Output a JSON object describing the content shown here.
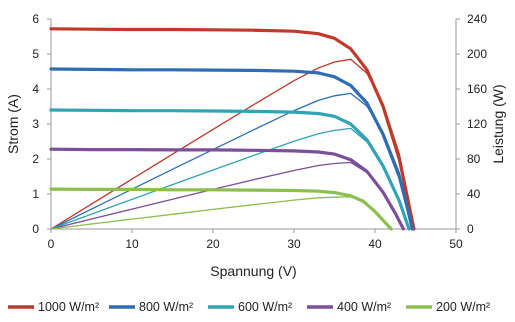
{
  "chart_data": {
    "type": "line",
    "title": "",
    "xlabel": "Spannung (V)",
    "ylabel": "Strom (A)",
    "y2label": "Leistung (W)",
    "xlim": [
      0,
      50
    ],
    "ylim": [
      0,
      6
    ],
    "y2lim": [
      0,
      240
    ],
    "x_ticks": [
      0,
      10,
      20,
      30,
      40,
      50
    ],
    "y_ticks": [
      0,
      1,
      2,
      3,
      4,
      5,
      6
    ],
    "y2_ticks": [
      0,
      40,
      80,
      120,
      160,
      200,
      240
    ],
    "grid": false,
    "legend_position": "bottom",
    "series": [
      {
        "name": "1000 W/m²",
        "color": "#c0392b",
        "current": {
          "x": [
            0,
            5,
            10,
            15,
            20,
            25,
            30,
            33,
            35,
            37,
            39,
            41,
            43,
            44,
            44.8
          ],
          "y": [
            5.72,
            5.71,
            5.7,
            5.7,
            5.69,
            5.68,
            5.65,
            5.58,
            5.45,
            5.15,
            4.55,
            3.5,
            2.0,
            0.9,
            0
          ]
        },
        "power": {
          "x": [
            0,
            5,
            10,
            15,
            20,
            25,
            30,
            33,
            35,
            37,
            39,
            41,
            43,
            44,
            44.8
          ],
          "y": [
            0,
            28.5,
            57,
            85.5,
            113.8,
            142,
            169.5,
            184,
            190.8,
            194,
            178,
            143,
            86,
            40,
            0
          ]
        }
      },
      {
        "name": "800 W/m²",
        "color": "#2e6db4",
        "current": {
          "x": [
            0,
            5,
            10,
            15,
            20,
            25,
            30,
            33,
            35,
            37,
            39,
            41,
            43,
            44,
            44.6
          ],
          "y": [
            4.57,
            4.56,
            4.55,
            4.55,
            4.54,
            4.53,
            4.51,
            4.46,
            4.35,
            4.1,
            3.6,
            2.7,
            1.5,
            0.6,
            0
          ]
        },
        "power": {
          "x": [
            0,
            5,
            10,
            15,
            20,
            25,
            30,
            33,
            35,
            37,
            39,
            41,
            43,
            44,
            44.6
          ],
          "y": [
            0,
            22.8,
            45.5,
            68.2,
            90.8,
            113.2,
            135.3,
            147,
            152.2,
            155,
            140.4,
            110.7,
            64.5,
            26.4,
            0
          ]
        }
      },
      {
        "name": "600 W/m²",
        "color": "#31a3b5",
        "current": {
          "x": [
            0,
            5,
            10,
            15,
            20,
            25,
            30,
            33,
            35,
            37,
            39,
            41,
            43,
            44.2
          ],
          "y": [
            3.4,
            3.39,
            3.38,
            3.38,
            3.37,
            3.36,
            3.34,
            3.3,
            3.22,
            3.0,
            2.55,
            1.8,
            0.8,
            0
          ]
        },
        "power": {
          "x": [
            0,
            5,
            10,
            15,
            20,
            25,
            30,
            33,
            35,
            37,
            39,
            41,
            43,
            44.2
          ],
          "y": [
            0,
            17,
            33.8,
            50.7,
            67.4,
            84,
            100.2,
            108.9,
            112.7,
            115,
            99.5,
            73.8,
            34.4,
            0
          ]
        }
      },
      {
        "name": "400 W/m²",
        "color": "#7b4f9a",
        "current": {
          "x": [
            0,
            5,
            10,
            15,
            20,
            25,
            30,
            33,
            35,
            37,
            39,
            41,
            42.5,
            43.5
          ],
          "y": [
            2.28,
            2.27,
            2.27,
            2.26,
            2.26,
            2.25,
            2.23,
            2.2,
            2.14,
            1.98,
            1.65,
            1.05,
            0.45,
            0
          ]
        },
        "power": {
          "x": [
            0,
            5,
            10,
            15,
            20,
            25,
            30,
            33,
            35,
            37,
            39,
            41,
            42.5,
            43.5
          ],
          "y": [
            0,
            11.4,
            22.7,
            33.9,
            45.2,
            56.3,
            66.9,
            72.6,
            74.9,
            76,
            64.4,
            43,
            19.1,
            0
          ]
        }
      },
      {
        "name": "200 W/m²",
        "color": "#8cbf4e",
        "current": {
          "x": [
            0,
            5,
            10,
            15,
            20,
            25,
            30,
            33,
            35,
            37,
            38.5,
            40,
            41,
            42
          ],
          "y": [
            1.14,
            1.13,
            1.13,
            1.12,
            1.12,
            1.11,
            1.1,
            1.08,
            1.04,
            0.95,
            0.8,
            0.5,
            0.25,
            0
          ]
        },
        "power": {
          "x": [
            0,
            5,
            10,
            15,
            20,
            25,
            30,
            33,
            35,
            37,
            38.5,
            40,
            41,
            42
          ],
          "y": [
            0,
            5.7,
            11.3,
            16.8,
            22.4,
            27.8,
            33,
            35.6,
            36.4,
            36.8,
            30.8,
            20,
            10.3,
            0
          ]
        }
      }
    ]
  }
}
